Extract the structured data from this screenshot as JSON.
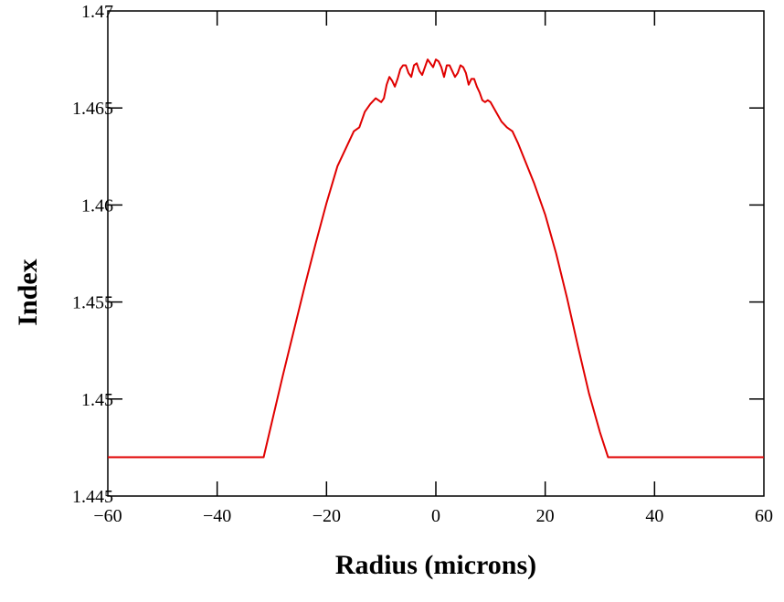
{
  "chart_data": {
    "type": "line",
    "title": "",
    "xlabel": "Radius (microns)",
    "ylabel": "Index",
    "xlim": [
      -60,
      60
    ],
    "ylim": [
      1.445,
      1.47
    ],
    "xticks": [
      -60,
      -40,
      -20,
      0,
      20,
      40,
      60
    ],
    "xtick_labels": [
      "−60",
      "−40",
      "−20",
      "0",
      "20",
      "40",
      "60"
    ],
    "yticks": [
      1.445,
      1.45,
      1.455,
      1.46,
      1.465,
      1.47
    ],
    "ytick_labels": [
      "1.445",
      "1.45",
      "1.455",
      "1.46",
      "1.465",
      "1.47"
    ],
    "grid": false,
    "series": [
      {
        "color": "#e00000",
        "x": [
          -60,
          -31.5,
          -30,
          -28,
          -26,
          -24,
          -22,
          -20,
          -18,
          -16,
          -15,
          -14,
          -13,
          -12,
          -11,
          -10,
          -9.5,
          -9,
          -8.5,
          -8,
          -7.5,
          -7,
          -6.5,
          -6,
          -5.5,
          -5,
          -4.5,
          -4,
          -3.5,
          -3,
          -2.5,
          -2,
          -1.5,
          -1,
          -0.5,
          0,
          0.5,
          1,
          1.5,
          2,
          2.5,
          3,
          3.5,
          4,
          4.5,
          5,
          5.5,
          6,
          6.5,
          7,
          7.5,
          8,
          8.5,
          9,
          9.5,
          10,
          11,
          12,
          13,
          14,
          15,
          16,
          18,
          20,
          22,
          24,
          26,
          28,
          30,
          31.5,
          60
        ],
        "y": [
          1.447,
          1.447,
          1.4488,
          1.4512,
          1.4535,
          1.4558,
          1.458,
          1.4601,
          1.462,
          1.4632,
          1.4638,
          1.464,
          1.4648,
          1.4652,
          1.4655,
          1.4653,
          1.4655,
          1.4662,
          1.4666,
          1.4664,
          1.4661,
          1.4665,
          1.467,
          1.4672,
          1.4672,
          1.4668,
          1.4666,
          1.4672,
          1.4673,
          1.4669,
          1.4667,
          1.4671,
          1.4675,
          1.4673,
          1.4671,
          1.4675,
          1.4674,
          1.4671,
          1.4666,
          1.4672,
          1.4672,
          1.4669,
          1.4666,
          1.4668,
          1.4672,
          1.4671,
          1.4668,
          1.4662,
          1.4665,
          1.4665,
          1.4661,
          1.4658,
          1.4654,
          1.4653,
          1.4654,
          1.4653,
          1.4648,
          1.4643,
          1.464,
          1.4638,
          1.4632,
          1.4625,
          1.4611,
          1.4595,
          1.4575,
          1.4552,
          1.4527,
          1.4503,
          1.4483,
          1.447,
          1.447
        ]
      }
    ]
  }
}
